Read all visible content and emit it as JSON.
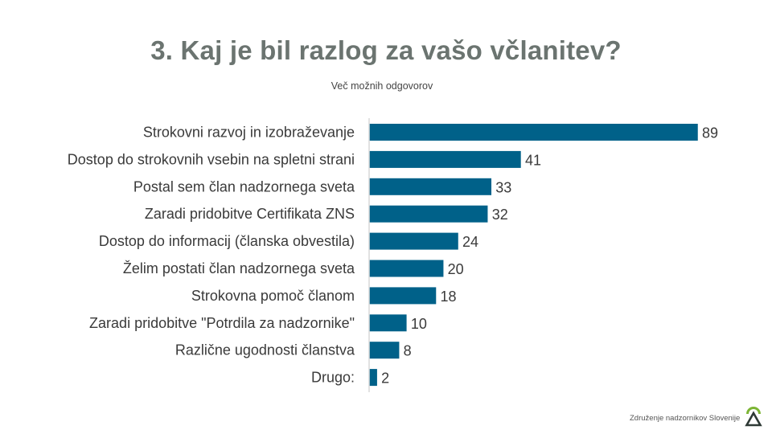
{
  "header": {
    "title": "3. Kaj je bil razlog za vašo včlanitev?",
    "subtitle": "Več možnih odgovorov"
  },
  "footer": {
    "organization": "Združenje nadzornikov Slovenije",
    "logo_icon": "peak-circle-logo-icon"
  },
  "colors": {
    "bar": "#006189",
    "axis": "#d9d9d9",
    "title": "#6b7470",
    "logo_green": "#7cb534",
    "logo_dark": "#2f3a36"
  },
  "chart_data": {
    "type": "bar",
    "orientation": "horizontal",
    "title": "3. Kaj je bil razlog za vašo včlanitev?",
    "subtitle": "Več možnih odgovorov",
    "xlabel": "",
    "ylabel": "",
    "grid": false,
    "legend": "none",
    "xlim": [
      0,
      89
    ],
    "categories": [
      "Strokovni razvoj in izobraževanje",
      "Dostop do strokovnih vsebin na spletni strani",
      "Postal sem član nadzornega sveta",
      "Zaradi pridobitve Certifikata ZNS",
      "Dostop do informacij (članska obvestila)",
      "Želim postati član nadzornega sveta",
      "Strokovna pomoč članom",
      "Zaradi pridobitve \"Potrdila za nadzornike\"",
      "Različne ugodnosti članstva",
      "Drugo:"
    ],
    "values": [
      89,
      41,
      33,
      32,
      24,
      20,
      18,
      10,
      8,
      2
    ]
  }
}
